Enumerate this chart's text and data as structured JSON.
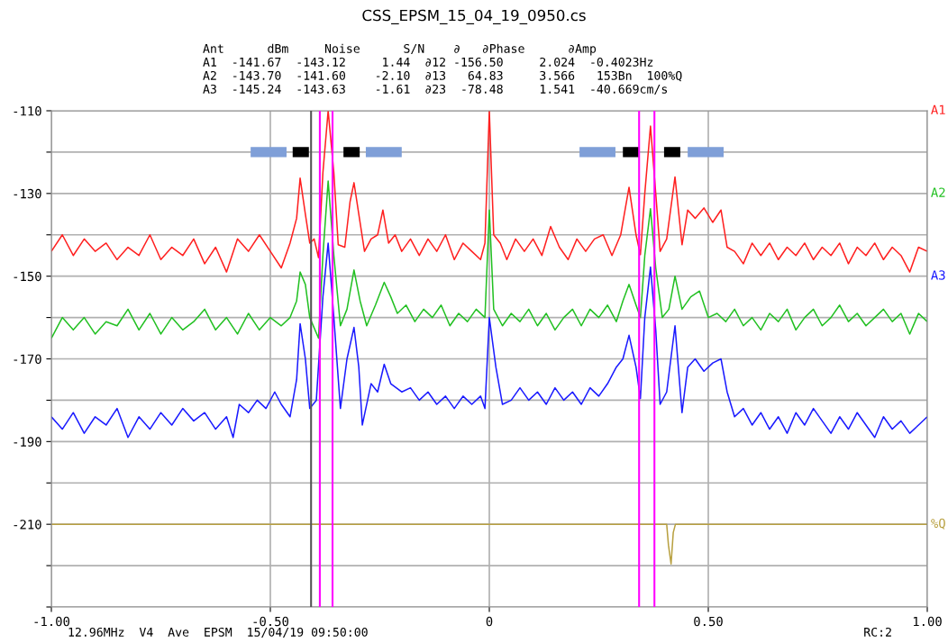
{
  "chart_data": {
    "type": "line",
    "title": "CSS_EPSM_15_04_19_0950.cs",
    "annotations": [
      "Ant      dBm     Noise      S/N    ∂   ∂Phase      ∂Amp",
      "A1  -141.67  -143.12     1.44  ∂12 -156.50     2.024  -0.4023Hz",
      "A2  -143.70  -141.60    -2.10  ∂13   64.83     3.566   153Bn  100%Q",
      "A3  -145.24  -143.63    -1.61  ∂23  -78.48     1.541  -40.669cm/s",
      "12.96MHz  V4  Ave  EPSM  15/04/19 09:50:00",
      "RC:2"
    ],
    "xlim": [
      -1,
      1
    ],
    "xticks": [
      {
        "value": -1,
        "label": "-1.00"
      },
      {
        "value": -0.5,
        "label": "-0.50"
      },
      0,
      {
        "value": 0.5,
        "label": "0.50"
      },
      {
        "value": 1,
        "label": "1.00"
      }
    ],
    "ylim": [
      -230,
      -110
    ],
    "yticks": [
      -110,
      {
        "value": -120,
        "label": null
      },
      -130,
      {
        "value": -140,
        "label": null
      },
      -150,
      {
        "value": -160,
        "label": null
      },
      -170,
      {
        "value": -180,
        "label": null
      },
      -190,
      {
        "value": -200,
        "label": null
      },
      -210,
      {
        "value": -220,
        "label": null
      },
      {
        "value": -230,
        "label": null
      }
    ],
    "grid": true,
    "legend": false,
    "marker": "none",
    "line_style": "solid",
    "ref_lines": [
      {
        "axis": "x",
        "value": -0.407,
        "color": "#555555"
      },
      {
        "axis": "x",
        "value": -0.387,
        "color": "#ff00ff"
      },
      {
        "axis": "x",
        "value": -0.358,
        "color": "#ff00ff"
      },
      {
        "axis": "x",
        "value": 0.342,
        "color": "#ff00ff"
      },
      {
        "axis": "x",
        "value": 0.377,
        "color": "#ff00ff"
      }
    ],
    "series": [
      {
        "color": "#7f9fd8",
        "x": [
          -0.545,
          -0.463,
          -0.37,
          -0.282,
          -0.2,
          0,
          0.206,
          0.288,
          0.37,
          0.453,
          0.535
        ],
        "values": [
          -120,
          -120,
          null,
          -120,
          -120,
          null,
          -120,
          -120,
          null,
          -120,
          -120
        ]
      },
      {
        "color": "#000000",
        "x": [
          -0.449,
          -0.412,
          -0.37,
          -0.333,
          -0.296,
          0,
          0.305,
          0.342,
          0.37,
          0.399,
          0.436
        ],
        "values": [
          -120,
          -120,
          null,
          -120,
          -120,
          null,
          -120,
          -120,
          null,
          -120,
          -120
        ]
      },
      {
        "name": "A1",
        "color": "#ff2020",
        "x": [
          -1,
          -0.975,
          -0.95,
          -0.925,
          -0.9,
          -0.875,
          -0.85,
          -0.825,
          -0.8,
          -0.775,
          -0.75,
          -0.725,
          -0.7,
          -0.675,
          -0.65,
          -0.625,
          -0.6,
          -0.575,
          -0.55,
          -0.525,
          -0.5,
          -0.475,
          -0.455,
          -0.44,
          -0.432,
          -0.42,
          -0.41,
          -0.4,
          -0.39,
          -0.38,
          -0.368,
          -0.355,
          -0.345,
          -0.33,
          -0.318,
          -0.309,
          -0.298,
          -0.285,
          -0.27,
          -0.255,
          -0.243,
          -0.23,
          -0.215,
          -0.2,
          -0.18,
          -0.16,
          -0.14,
          -0.12,
          -0.1,
          -0.08,
          -0.06,
          -0.04,
          -0.02,
          -0.01,
          0,
          0.01,
          0.025,
          0.04,
          0.06,
          0.08,
          0.1,
          0.12,
          0.14,
          0.16,
          0.18,
          0.2,
          0.22,
          0.24,
          0.26,
          0.28,
          0.3,
          0.319,
          0.335,
          0.345,
          0.355,
          0.368,
          0.38,
          0.39,
          0.405,
          0.424,
          0.44,
          0.453,
          0.47,
          0.49,
          0.51,
          0.529,
          0.543,
          0.56,
          0.58,
          0.6,
          0.62,
          0.64,
          0.66,
          0.68,
          0.7,
          0.72,
          0.74,
          0.76,
          0.78,
          0.8,
          0.82,
          0.84,
          0.86,
          0.88,
          0.9,
          0.92,
          0.94,
          0.96,
          0.98,
          1
        ],
        "values": [
          -144,
          -140,
          -145,
          -141,
          -144,
          -142,
          -146,
          -143,
          -145,
          -140,
          -146,
          -143,
          -145,
          -141,
          -147,
          -143,
          -149,
          -141,
          -144,
          -140,
          -144,
          -148,
          -142,
          -136,
          -126.3,
          -135,
          -142,
          -141,
          -145.5,
          -125,
          -110,
          -125,
          -142.4,
          -143,
          -132,
          -127.4,
          -135,
          -144,
          -141,
          -140,
          -134,
          -142,
          -140,
          -144,
          -141,
          -145,
          -141,
          -144,
          -140,
          -146,
          -142,
          -144,
          -146,
          -142,
          -110,
          -140,
          -142,
          -146,
          -141,
          -144,
          -141,
          -145,
          -138,
          -143,
          -146,
          -141,
          -144,
          -141,
          -140,
          -145,
          -140,
          -128.5,
          -140,
          -144.8,
          -130,
          -113.7,
          -130,
          -144,
          -141,
          -126,
          -142.4,
          -134,
          -136,
          -133.5,
          -137,
          -134,
          -143,
          -144,
          -147,
          -142,
          -145,
          -142,
          -146,
          -143,
          -145,
          -142,
          -146,
          -143,
          -145,
          -142,
          -147,
          -143,
          -145,
          -142,
          -146,
          -143,
          -145,
          -149,
          -143,
          -144
        ]
      },
      {
        "name": "A2",
        "color": "#22c022",
        "x": [
          -1,
          -0.975,
          -0.95,
          -0.925,
          -0.9,
          -0.875,
          -0.85,
          -0.825,
          -0.8,
          -0.775,
          -0.75,
          -0.725,
          -0.7,
          -0.675,
          -0.65,
          -0.625,
          -0.6,
          -0.575,
          -0.55,
          -0.525,
          -0.5,
          -0.475,
          -0.455,
          -0.44,
          -0.432,
          -0.42,
          -0.41,
          -0.39,
          -0.38,
          -0.368,
          -0.355,
          -0.34,
          -0.325,
          -0.309,
          -0.295,
          -0.28,
          -0.26,
          -0.24,
          -0.225,
          -0.21,
          -0.19,
          -0.17,
          -0.15,
          -0.13,
          -0.11,
          -0.09,
          -0.07,
          -0.05,
          -0.03,
          -0.01,
          0,
          0.01,
          0.03,
          0.05,
          0.07,
          0.09,
          0.11,
          0.13,
          0.15,
          0.17,
          0.19,
          0.21,
          0.23,
          0.25,
          0.27,
          0.29,
          0.305,
          0.319,
          0.335,
          0.345,
          0.355,
          0.368,
          0.38,
          0.395,
          0.41,
          0.424,
          0.44,
          0.46,
          0.48,
          0.5,
          0.52,
          0.54,
          0.56,
          0.58,
          0.6,
          0.62,
          0.64,
          0.66,
          0.68,
          0.7,
          0.72,
          0.74,
          0.76,
          0.78,
          0.8,
          0.82,
          0.84,
          0.86,
          0.88,
          0.9,
          0.92,
          0.94,
          0.96,
          0.98,
          1
        ],
        "values": [
          -165,
          -160,
          -163,
          -160,
          -164,
          -161,
          -162,
          -158,
          -163,
          -159,
          -164,
          -160,
          -163,
          -161,
          -158,
          -163,
          -160,
          -164,
          -159,
          -163,
          -160,
          -162,
          -160,
          -156,
          -149,
          -152,
          -160,
          -165,
          -145,
          -127,
          -145,
          -162,
          -158,
          -148.5,
          -156,
          -162,
          -157,
          -151.5,
          -155,
          -159,
          -157,
          -161,
          -158,
          -160,
          -157,
          -162,
          -159,
          -161,
          -158,
          -160,
          -134,
          -158,
          -162,
          -159,
          -161,
          -158,
          -162,
          -159,
          -163,
          -160,
          -158,
          -162,
          -158,
          -160,
          -157,
          -161,
          -156,
          -152,
          -157,
          -160,
          -145,
          -133.7,
          -148,
          -160,
          -158,
          -150,
          -158,
          -155,
          -153.6,
          -160,
          -159,
          -161,
          -158,
          -162,
          -160,
          -163,
          -159,
          -161,
          -158,
          -163,
          -160,
          -158,
          -162,
          -160,
          -157,
          -161,
          -159,
          -162,
          -160,
          -158,
          -161,
          -159,
          -164,
          -159,
          -161
        ]
      },
      {
        "name": "A3",
        "color": "#1a1aff",
        "x": [
          -1,
          -0.975,
          -0.95,
          -0.925,
          -0.9,
          -0.875,
          -0.85,
          -0.825,
          -0.8,
          -0.775,
          -0.75,
          -0.725,
          -0.7,
          -0.675,
          -0.65,
          -0.625,
          -0.6,
          -0.585,
          -0.571,
          -0.55,
          -0.53,
          -0.51,
          -0.49,
          -0.475,
          -0.455,
          -0.44,
          -0.432,
          -0.42,
          -0.41,
          -0.395,
          -0.38,
          -0.368,
          -0.355,
          -0.34,
          -0.325,
          -0.309,
          -0.298,
          -0.29,
          -0.27,
          -0.255,
          -0.24,
          -0.225,
          -0.2,
          -0.18,
          -0.16,
          -0.14,
          -0.12,
          -0.1,
          -0.08,
          -0.06,
          -0.04,
          -0.02,
          -0.01,
          0,
          0.015,
          0.03,
          0.05,
          0.07,
          0.09,
          0.11,
          0.13,
          0.15,
          0.17,
          0.19,
          0.21,
          0.23,
          0.25,
          0.27,
          0.29,
          0.305,
          0.319,
          0.335,
          0.345,
          0.355,
          0.368,
          0.38,
          0.39,
          0.405,
          0.424,
          0.44,
          0.453,
          0.47,
          0.49,
          0.51,
          0.529,
          0.543,
          0.56,
          0.58,
          0.6,
          0.62,
          0.64,
          0.66,
          0.68,
          0.7,
          0.72,
          0.74,
          0.76,
          0.78,
          0.8,
          0.82,
          0.84,
          0.86,
          0.88,
          0.9,
          0.92,
          0.94,
          0.96,
          0.98,
          1
        ],
        "values": [
          -184,
          -187,
          -183,
          -188,
          -184,
          -186,
          -182,
          -189,
          -184,
          -187,
          -183,
          -186,
          -182,
          -185,
          -183,
          -187,
          -184,
          -189,
          -181,
          -183,
          -180,
          -182,
          -178,
          -181,
          -184,
          -175,
          -161.5,
          -170,
          -182,
          -180,
          -155,
          -142,
          -160,
          -182,
          -170,
          -162.4,
          -172,
          -186,
          -176,
          -178,
          -171.3,
          -176,
          -178,
          -177,
          -180,
          -178,
          -181,
          -179,
          -182,
          -179,
          -181,
          -179,
          -182,
          -160,
          -172,
          -181,
          -180,
          -177,
          -180,
          -178,
          -181,
          -177,
          -180,
          -178,
          -181,
          -177,
          -179,
          -176,
          -172,
          -170,
          -164.3,
          -172,
          -179.6,
          -160,
          -147.8,
          -163,
          -181,
          -178,
          -162,
          -183,
          -172,
          -170,
          -173,
          -171,
          -170,
          -178,
          -184,
          -182,
          -186,
          -183,
          -187,
          -184,
          -188,
          -183,
          -186,
          -182,
          -185,
          -188,
          -184,
          -187,
          -183,
          -186,
          -189,
          -184,
          -187,
          -185,
          -188,
          -186,
          -184
        ]
      },
      {
        "name": "%Q",
        "color": "#b8a040",
        "x": [
          -1,
          0.405,
          0.409,
          0.415,
          0.42,
          0.425,
          1
        ],
        "values": [
          -210,
          -210,
          -215,
          -219.6,
          -212,
          -210,
          -210
        ]
      }
    ]
  }
}
